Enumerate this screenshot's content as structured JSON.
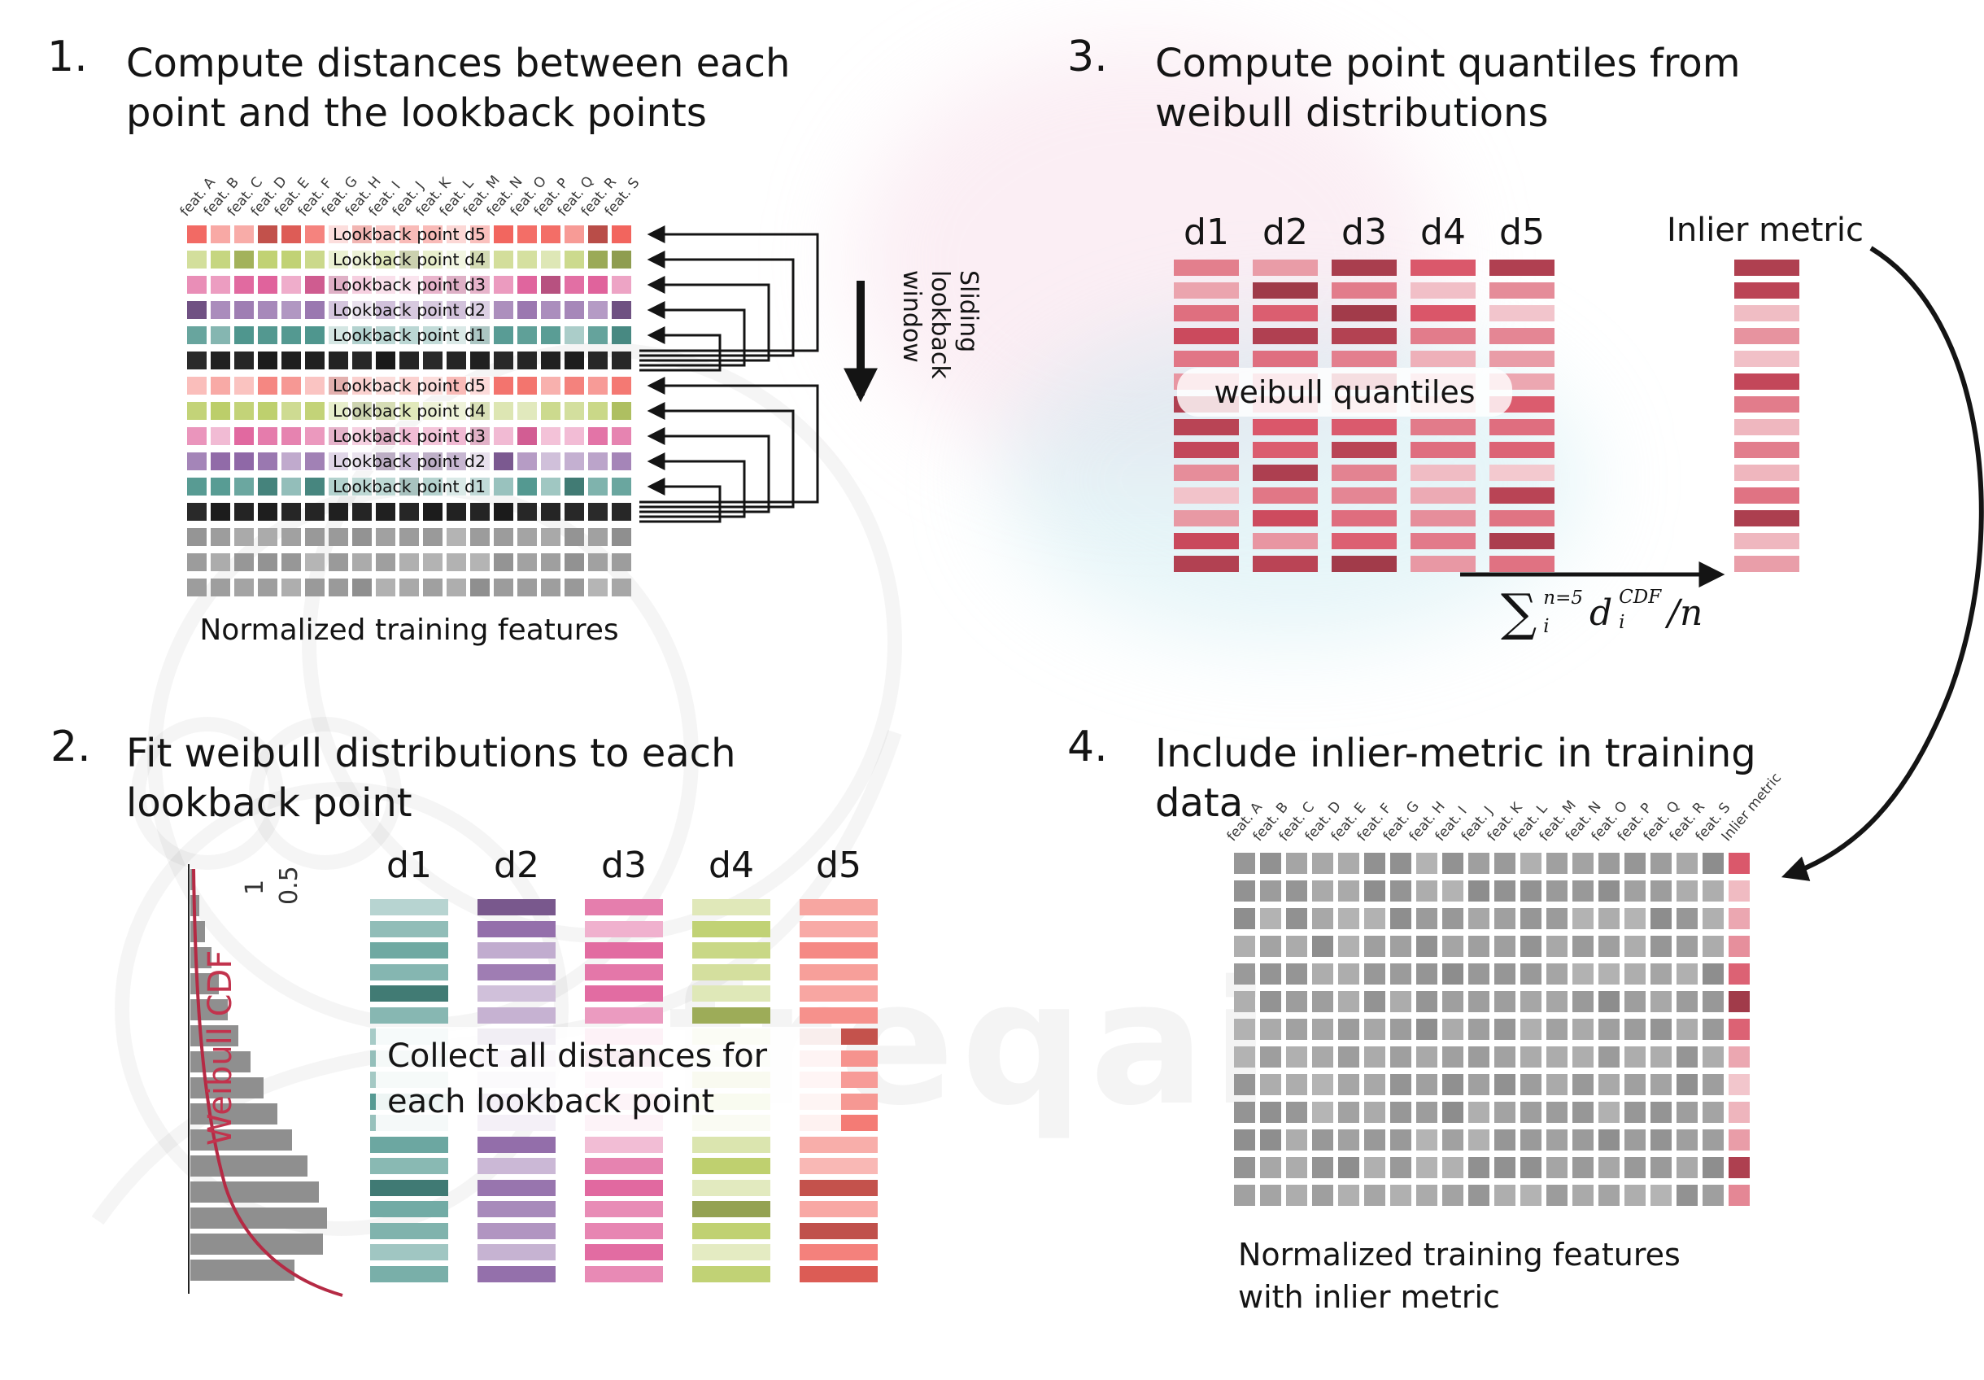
{
  "watermark_text": "freqai",
  "colors": {
    "red": "#f2655e",
    "green": "#bcce69",
    "pink": "#e0639c",
    "purple": "#8e67a6",
    "teal": "#4f968e",
    "black": "#1a1a1a",
    "gray": "#a0a0a0",
    "quantile": "#d84f63",
    "cdf_curve": "#b52a44",
    "hist_gray": "#8f8f8f"
  },
  "features": [
    "feat. A",
    "feat. B",
    "feat. C",
    "feat. D",
    "feat. E",
    "feat. F",
    "feat. G",
    "feat. H",
    "feat. I",
    "feat. J",
    "feat. K",
    "feat. L",
    "feat. M",
    "feat. N",
    "feat. O",
    "feat. P",
    "feat. Q",
    "feat. R",
    "feat. S"
  ],
  "panel1": {
    "number": "1.",
    "title": [
      "Compute distances between each",
      "point and the lookback points"
    ],
    "caption": "Normalized training features",
    "sliding_label": [
      "Sliding",
      "lookback",
      "window"
    ],
    "rows": [
      {
        "color": "red",
        "label": "Lookback point d5"
      },
      {
        "color": "green",
        "label": "Lookback point d4"
      },
      {
        "color": "pink",
        "label": "Lookback point d3"
      },
      {
        "color": "purple",
        "label": "Lookback point d2"
      },
      {
        "color": "teal",
        "label": "Lookback point d1"
      },
      {
        "color": "black",
        "label": ""
      },
      {
        "color": "red",
        "label": "Lookback point d5"
      },
      {
        "color": "green",
        "label": "Lookback point d4"
      },
      {
        "color": "pink",
        "label": "Lookback point d3"
      },
      {
        "color": "purple",
        "label": "Lookback point d2"
      },
      {
        "color": "teal",
        "label": "Lookback point d1"
      },
      {
        "color": "black",
        "label": ""
      },
      {
        "color": "gray",
        "label": ""
      },
      {
        "color": "gray",
        "label": ""
      },
      {
        "color": "gray",
        "label": ""
      }
    ]
  },
  "panel2": {
    "number": "2.",
    "title": [
      "Fit weibull distributions to each",
      "lookback point"
    ],
    "axis_label": "Weibull CDF",
    "ticks": [
      "1",
      "0.5"
    ],
    "histogram": [
      4,
      7,
      11,
      16,
      22,
      29,
      37,
      46,
      56,
      67,
      78,
      90,
      99,
      105,
      102,
      80
    ],
    "columns": [
      {
        "label": "d1",
        "color": "teal"
      },
      {
        "label": "d2",
        "color": "purple"
      },
      {
        "label": "d3",
        "color": "pink"
      },
      {
        "label": "d4",
        "color": "green"
      },
      {
        "label": "d5",
        "color": "red"
      }
    ],
    "bars_per_column": 18,
    "overlay": [
      "Collect all distances for",
      "each lookback point"
    ]
  },
  "panel3": {
    "number": "3.",
    "title": [
      "Compute point quantiles from",
      "weibull distributions"
    ],
    "columns": [
      "d1",
      "d2",
      "d3",
      "d4",
      "d5"
    ],
    "bars_per_column": 14,
    "overlay": "weibull quantiles",
    "inlier_label": "Inlier metric",
    "formula": {
      "sigma": "∑",
      "sum_sup": "n=5",
      "sum_sub": "i",
      "term": "d",
      "term_sub": "i",
      "term_sup": "CDF",
      "divided": "/n"
    }
  },
  "panel4": {
    "number": "4.",
    "title": [
      "Include inlier-metric in training",
      "data"
    ],
    "inlier_col_label": "Inlier metric",
    "rows": 13,
    "caption": [
      "Normalized training features",
      "with inlier metric"
    ]
  }
}
